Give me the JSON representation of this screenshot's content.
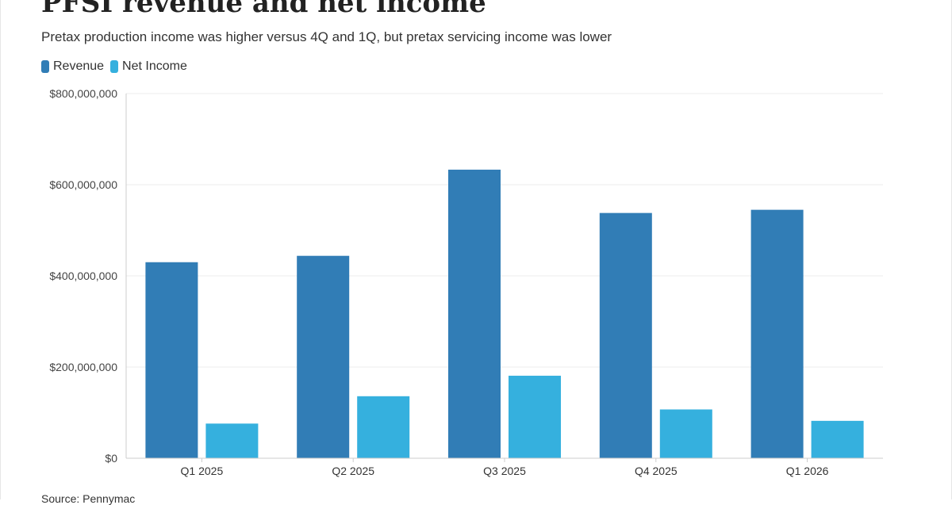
{
  "header": {
    "title": "PFSI revenue and net income",
    "subtitle": "Pretax production income was higher versus 4Q and 1Q, but pretax servicing income was lower"
  },
  "legend": {
    "revenue_label": "Revenue",
    "net_income_label": "Net Income"
  },
  "footer": {
    "source": "Source: Pennymac"
  },
  "colors": {
    "revenue": "#317DB6",
    "net_income": "#35B0DE",
    "gridline": "#ececec",
    "axis": "#cccccc"
  },
  "chart_data": {
    "type": "bar",
    "title": "PFSI revenue and net income",
    "subtitle": "Pretax production income was higher versus 4Q and 1Q, but pretax servicing income was lower",
    "categories": [
      "Q1 2025",
      "Q2 2025",
      "Q3 2025",
      "Q4 2025",
      "Q1 2026"
    ],
    "series": [
      {
        "name": "Revenue",
        "values": [
          430000000,
          444000000,
          633000000,
          538000000,
          545000000
        ]
      },
      {
        "name": "Net Income",
        "values": [
          76000000,
          136000000,
          181000000,
          107000000,
          82000000
        ]
      }
    ],
    "ylim": [
      0,
      800000000
    ],
    "yticks": [
      0,
      200000000,
      400000000,
      600000000,
      800000000
    ],
    "ytick_labels": [
      "$0",
      "$200,000,000",
      "$400,000,000",
      "$600,000,000",
      "$800,000,000"
    ],
    "grid": true,
    "legend_position": "top-left"
  }
}
